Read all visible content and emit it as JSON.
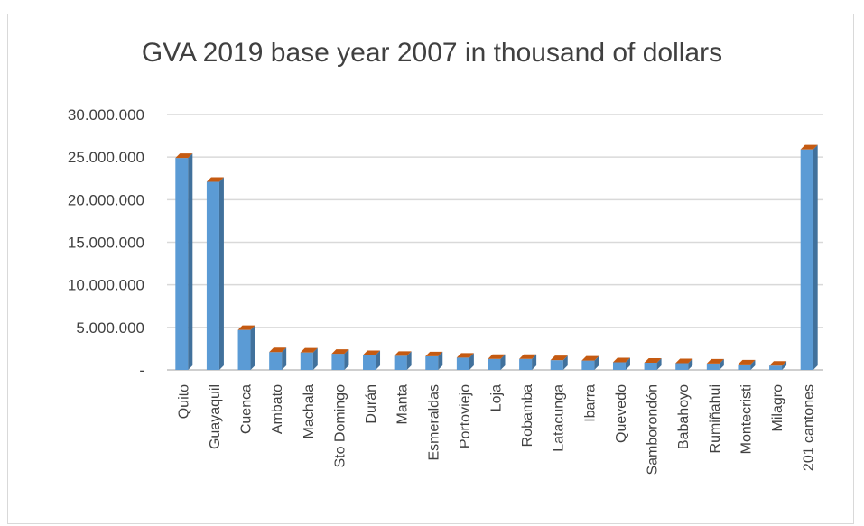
{
  "chart_data": {
    "type": "bar",
    "title": "GVA 2019 base year 2007 in thousand of dollars",
    "xlabel": "",
    "ylabel": "",
    "ylim": [
      0,
      30000000
    ],
    "yticks": [
      0,
      5000000,
      10000000,
      15000000,
      20000000,
      25000000,
      30000000
    ],
    "ytick_labels": [
      "-",
      "5.000.000",
      "10.000.000",
      "15.000.000",
      "20.000.000",
      "25.000.000",
      "30.000.000"
    ],
    "grid": true,
    "legend": "none",
    "categories": [
      "Quito",
      "Guayaquil",
      "Cuenca",
      "Ambato",
      "Machala",
      "Sto Domingo",
      "Durán",
      "Manta",
      "Esmeraldas",
      "Portoviejo",
      "Loja",
      "Robamba",
      "Latacunga",
      "Ibarra",
      "Quevedo",
      "Samborondón",
      "Babahoyo",
      "Rumiñahui",
      "Montecristi",
      "Milagro",
      "201 cantones"
    ],
    "values": [
      24900000,
      22100000,
      4700000,
      2100000,
      2050000,
      1900000,
      1750000,
      1650000,
      1600000,
      1450000,
      1300000,
      1300000,
      1150000,
      1100000,
      900000,
      850000,
      800000,
      750000,
      650000,
      500000,
      25900000
    ],
    "colors": {
      "bar_front": "#5B9BD5",
      "bar_side": "#41719C",
      "bar_top": "#C55A11",
      "grid": "#d9d9d9",
      "axis": "#bfbfbf"
    }
  }
}
